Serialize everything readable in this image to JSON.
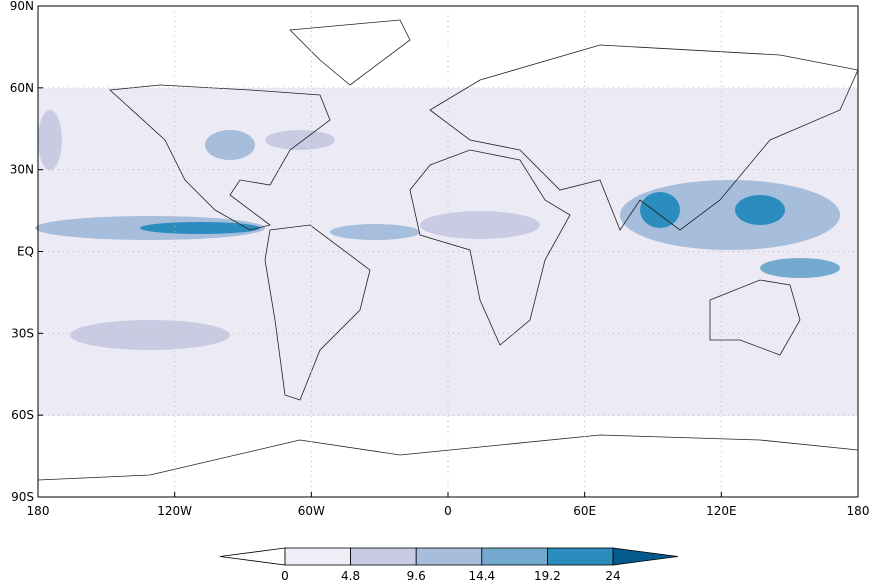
{
  "map": {
    "lat_ticks": [
      "90N",
      "60N",
      "30N",
      "EQ",
      "30S",
      "60S",
      "90S"
    ],
    "lon_ticks": [
      "180",
      "120W",
      "60W",
      "0",
      "60E",
      "120E",
      "180"
    ],
    "colorbar": {
      "levels": [
        0,
        4.8,
        9.6,
        14.4,
        19.2,
        24
      ],
      "colors": [
        "#ffffff",
        "#efedf5",
        "#c9cbe3",
        "#a6bddb",
        "#74a9cf",
        "#2b8cbe",
        "#045a8d"
      ]
    }
  }
}
